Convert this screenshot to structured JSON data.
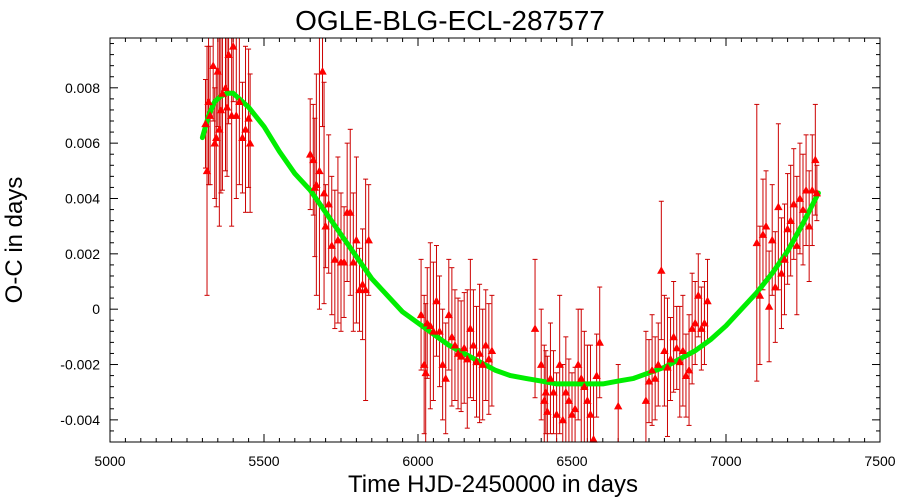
{
  "chart_data": {
    "type": "scatter",
    "title": "OGLE-BLG-ECL-287577",
    "xlabel": "Time HJD-2450000 in days",
    "ylabel": "O-C in days",
    "xlim": [
      5000,
      7500
    ],
    "ylim": [
      -0.0048,
      0.0098
    ],
    "xticks": [
      5000,
      5500,
      6000,
      6500,
      7000,
      7500
    ],
    "yticks": [
      -0.004,
      -0.002,
      0,
      0.002,
      0.004,
      0.006,
      0.008
    ],
    "ytick_labels": [
      "-0.004",
      "-0.002",
      "0",
      "0.002",
      "0.004",
      "0.006",
      "0.008"
    ],
    "colors": {
      "points": "#ff0000",
      "errorbars": "#cc0000",
      "fit": "#00ee00",
      "frame": "#000000"
    },
    "series": [
      {
        "kind": "points_with_errorbars",
        "marker": "triangle",
        "points": [
          [
            5310,
            0.0067,
            0.0016
          ],
          [
            5315,
            0.005,
            0.0045
          ],
          [
            5320,
            0.0075,
            0.003
          ],
          [
            5325,
            0.007,
            0.0025
          ],
          [
            5335,
            0.0088,
            0.002
          ],
          [
            5340,
            0.006,
            0.002
          ],
          [
            5345,
            0.0062,
            0.0025
          ],
          [
            5350,
            0.0086,
            0.002
          ],
          [
            5355,
            0.0065,
            0.0035
          ],
          [
            5360,
            0.0072,
            0.003
          ],
          [
            5365,
            0.0078,
            0.0035
          ],
          [
            5375,
            0.008,
            0.003
          ],
          [
            5380,
            0.0073,
            0.0025
          ],
          [
            5385,
            0.0092,
            0.0025
          ],
          [
            5395,
            0.007,
            0.004
          ],
          [
            5400,
            0.0095,
            0.002
          ],
          [
            5410,
            0.007,
            0.003
          ],
          [
            5420,
            0.0075,
            0.003
          ],
          [
            5430,
            0.0062,
            0.002
          ],
          [
            5440,
            0.0065,
            0.003
          ],
          [
            5450,
            0.0069,
            0.0025
          ],
          [
            5455,
            0.006,
            0.0025
          ],
          [
            5650,
            0.0056,
            0.002
          ],
          [
            5660,
            0.0054,
            0.002
          ],
          [
            5665,
            0.0044,
            0.0025
          ],
          [
            5670,
            0.0045,
            0.004
          ],
          [
            5680,
            0.005,
            0.005
          ],
          [
            5690,
            0.0086,
            0.002
          ],
          [
            5695,
            0.0042,
            0.004
          ],
          [
            5700,
            0.003,
            0.0015
          ],
          [
            5710,
            0.0038,
            0.0025
          ],
          [
            5720,
            0.0023,
            0.0025
          ],
          [
            5730,
            0.0018,
            0.0025
          ],
          [
            5740,
            0.0025,
            0.003
          ],
          [
            5750,
            0.0017,
            0.0025
          ],
          [
            5760,
            0.0017,
            0.002
          ],
          [
            5770,
            0.0035,
            0.0025
          ],
          [
            5780,
            0.0035,
            0.003
          ],
          [
            5790,
            0.0017,
            0.0025
          ],
          [
            5800,
            0.0025,
            0.003
          ],
          [
            5810,
            0.0007,
            0.0015
          ],
          [
            5820,
            0.0009,
            0.002
          ],
          [
            5830,
            0.0007,
            0.004
          ],
          [
            5840,
            0.0025,
            0.002
          ],
          [
            6010,
            -0.0002,
            0.002
          ],
          [
            6020,
            -0.002,
            0.0025
          ],
          [
            6025,
            -0.0023,
            0.0025
          ],
          [
            6030,
            -0.0005,
            0.002
          ],
          [
            6040,
            -0.0006,
            0.003
          ],
          [
            6050,
            -0.0008,
            0.0025
          ],
          [
            6060,
            0.0003,
            0.002
          ],
          [
            6070,
            -0.0008,
            0.002
          ],
          [
            6080,
            -0.002,
            0.002
          ],
          [
            6090,
            -0.0025,
            0.002
          ],
          [
            6100,
            -0.0002,
            0.002
          ],
          [
            6110,
            -0.001,
            0.0025
          ],
          [
            6120,
            -0.0013,
            0.002
          ],
          [
            6130,
            -0.0016,
            0.002
          ],
          [
            6140,
            -0.0017,
            0.002
          ],
          [
            6150,
            -0.0014,
            0.002
          ],
          [
            6160,
            -0.0018,
            0.0025
          ],
          [
            6170,
            -0.0007,
            0.0025
          ],
          [
            6180,
            -0.0013,
            0.002
          ],
          [
            6190,
            -0.0019,
            0.002
          ],
          [
            6200,
            -0.0016,
            0.0025
          ],
          [
            6210,
            -0.002,
            0.002
          ],
          [
            6220,
            -0.0013,
            0.002
          ],
          [
            6230,
            -0.0018,
            0.002
          ],
          [
            6240,
            -0.0015,
            0.002
          ],
          [
            6380,
            -0.0007,
            0.0025
          ],
          [
            6400,
            -0.002,
            0.002
          ],
          [
            6410,
            -0.0033,
            0.002
          ],
          [
            6415,
            -0.003,
            0.0015
          ],
          [
            6420,
            -0.0037,
            0.002
          ],
          [
            6430,
            -0.0025,
            0.002
          ],
          [
            6440,
            -0.003,
            0.0015
          ],
          [
            6450,
            -0.0038,
            0.0015
          ],
          [
            6460,
            -0.002,
            0.0025
          ],
          [
            6470,
            -0.004,
            0.002
          ],
          [
            6480,
            -0.003,
            0.002
          ],
          [
            6490,
            -0.0033,
            0.0015
          ],
          [
            6500,
            -0.0038,
            0.0015
          ],
          [
            6510,
            -0.0036,
            0.0015
          ],
          [
            6520,
            -0.002,
            0.002
          ],
          [
            6530,
            -0.0025,
            0.0025
          ],
          [
            6540,
            -0.0028,
            0.002
          ],
          [
            6550,
            -0.0033,
            0.002
          ],
          [
            6560,
            -0.0038,
            0.0025
          ],
          [
            6570,
            -0.0047,
            0.002
          ],
          [
            6580,
            -0.0024,
            0.0015
          ],
          [
            6590,
            -0.0012,
            0.002
          ],
          [
            6650,
            -0.0035,
            0.0015
          ],
          [
            6740,
            -0.0033,
            0.0025
          ],
          [
            6750,
            -0.0026,
            0.0015
          ],
          [
            6760,
            -0.0022,
            0.002
          ],
          [
            6770,
            -0.0025,
            0.0015
          ],
          [
            6780,
            -0.002,
            0.0015
          ],
          [
            6790,
            0.0014,
            0.0025
          ],
          [
            6800,
            -0.0015,
            0.002
          ],
          [
            6810,
            -0.0021,
            0.0025
          ],
          [
            6820,
            -0.0018,
            0.0015
          ],
          [
            6830,
            -0.001,
            0.002
          ],
          [
            6840,
            -0.0014,
            0.0015
          ],
          [
            6850,
            -0.0019,
            0.002
          ],
          [
            6860,
            -0.0015,
            0.002
          ],
          [
            6870,
            -0.0024,
            0.0015
          ],
          [
            6880,
            -0.0022,
            0.002
          ],
          [
            6890,
            -0.0007,
            0.002
          ],
          [
            6900,
            -0.0005,
            0.0015
          ],
          [
            6910,
            0.0005,
            0.0015
          ],
          [
            6920,
            -0.0007,
            0.0015
          ],
          [
            6930,
            -0.0005,
            0.0015
          ],
          [
            6940,
            0.0003,
            0.0015
          ],
          [
            7100,
            0.0024,
            0.005
          ],
          [
            7110,
            0.0005,
            0.0025
          ],
          [
            7120,
            0.0027,
            0.002
          ],
          [
            7130,
            0.003,
            0.002
          ],
          [
            7140,
            0.0001,
            0.002
          ],
          [
            7150,
            0.0025,
            0.002
          ],
          [
            7160,
            0.0008,
            0.002
          ],
          [
            7170,
            0.0037,
            0.003
          ],
          [
            7180,
            0.0013,
            0.002
          ],
          [
            7190,
            0.0018,
            0.002
          ],
          [
            7200,
            0.0029,
            0.002
          ],
          [
            7210,
            0.0032,
            0.002
          ],
          [
            7220,
            0.0038,
            0.002
          ],
          [
            7230,
            0.0023,
            0.0025
          ],
          [
            7240,
            0.004,
            0.002
          ],
          [
            7250,
            0.0036,
            0.002
          ],
          [
            7260,
            0.0043,
            0.002
          ],
          [
            7270,
            0.003,
            0.002
          ],
          [
            7280,
            0.0043,
            0.002
          ],
          [
            7290,
            0.0054,
            0.002
          ],
          [
            7295,
            0.0042,
            0.001
          ]
        ]
      },
      {
        "kind": "fit_curve",
        "points": [
          [
            5300,
            0.0062
          ],
          [
            5320,
            0.007
          ],
          [
            5340,
            0.0075
          ],
          [
            5360,
            0.0077
          ],
          [
            5380,
            0.0078
          ],
          [
            5400,
            0.0078
          ],
          [
            5450,
            0.0073
          ],
          [
            5500,
            0.0066
          ],
          [
            5550,
            0.0057
          ],
          [
            5600,
            0.0049
          ],
          [
            5650,
            0.0043
          ],
          [
            5700,
            0.0035
          ],
          [
            5750,
            0.0027
          ],
          [
            5800,
            0.0019
          ],
          [
            5850,
            0.0011
          ],
          [
            5900,
            0.0005
          ],
          [
            5950,
            -0.0001
          ],
          [
            6000,
            -0.0005
          ],
          [
            6050,
            -0.0009
          ],
          [
            6100,
            -0.0013
          ],
          [
            6150,
            -0.0016
          ],
          [
            6200,
            -0.0019
          ],
          [
            6250,
            -0.0022
          ],
          [
            6300,
            -0.0024
          ],
          [
            6350,
            -0.0025
          ],
          [
            6400,
            -0.0026
          ],
          [
            6450,
            -0.0027
          ],
          [
            6500,
            -0.0027
          ],
          [
            6550,
            -0.0027
          ],
          [
            6600,
            -0.0027
          ],
          [
            6650,
            -0.0026
          ],
          [
            6700,
            -0.0025
          ],
          [
            6750,
            -0.0023
          ],
          [
            6800,
            -0.0021
          ],
          [
            6850,
            -0.0018
          ],
          [
            6900,
            -0.0015
          ],
          [
            6950,
            -0.0011
          ],
          [
            7000,
            -0.0006
          ],
          [
            7050,
            0.0
          ],
          [
            7100,
            0.0006
          ],
          [
            7150,
            0.0013
          ],
          [
            7200,
            0.0021
          ],
          [
            7250,
            0.0031
          ],
          [
            7300,
            0.0042
          ]
        ]
      }
    ]
  }
}
